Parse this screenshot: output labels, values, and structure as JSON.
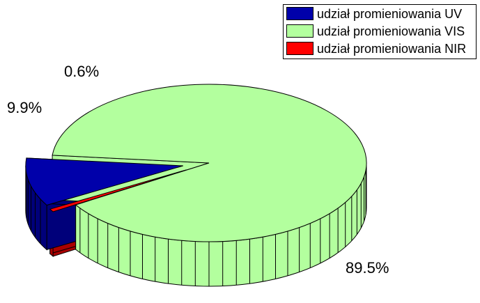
{
  "chart_data": {
    "type": "pie",
    "style": "3d-exploded",
    "legend_position": "top-right",
    "slices": [
      {
        "name": "udział promieniowania UV",
        "value": 9.9,
        "label": "9.9%",
        "color": "#0000aa",
        "side_color": "#00007a",
        "exploded": true
      },
      {
        "name": "udział promieniowania VIS",
        "value": 89.5,
        "label": "89.5%",
        "color": "#b3ff9e",
        "side_color": "#b3ff9e",
        "exploded": false
      },
      {
        "name": "udział promieniowania NIR",
        "value": 0.6,
        "label": "0.6%",
        "color": "#ff0000",
        "side_color": "#aa0000",
        "exploded": true
      }
    ]
  }
}
